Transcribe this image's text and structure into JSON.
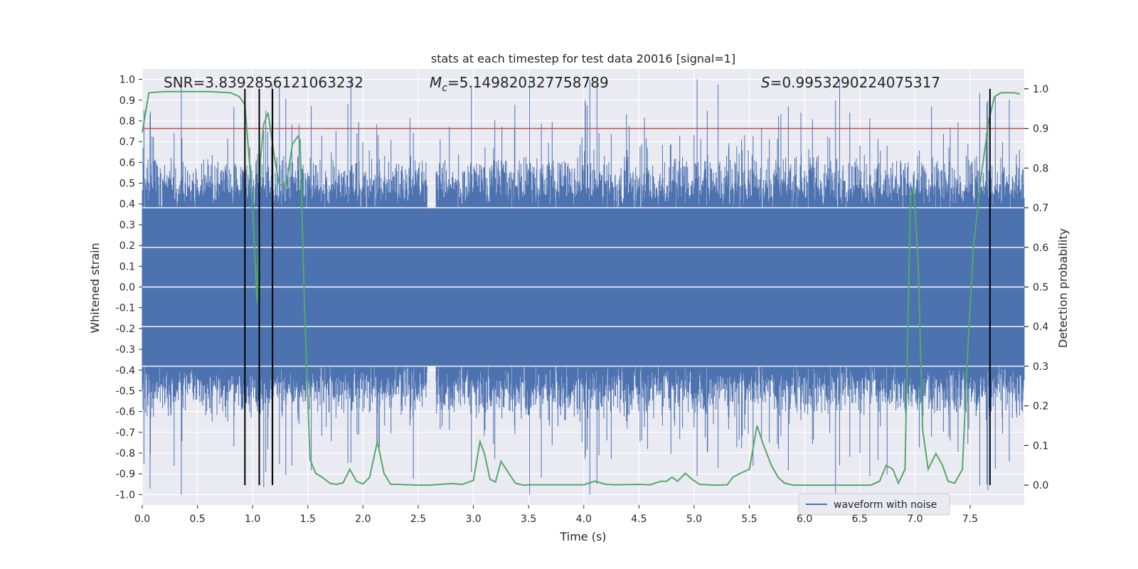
{
  "chart_data": {
    "type": "line",
    "title": "stats at each timestep for test data 20016 [signal=1]",
    "xlabel": "Time (s)",
    "ylabel": "Whitened strain",
    "y2label": "Detection probability",
    "xlim": [
      0.0,
      7.99
    ],
    "ylim": [
      -1.05,
      1.05
    ],
    "y2lim": [
      -0.05,
      1.05
    ],
    "x_ticks": [
      "0.0",
      "0.5",
      "1.0",
      "1.5",
      "2.0",
      "2.5",
      "3.0",
      "3.5",
      "4.0",
      "4.5",
      "5.0",
      "5.5",
      "6.0",
      "6.5",
      "7.0",
      "7.5"
    ],
    "y_ticks": [
      "1.0",
      "0.9",
      "0.8",
      "0.7",
      "0.6",
      "0.5",
      "0.4",
      "0.3",
      "0.2",
      "0.1",
      "0.0",
      "-0.1",
      "-0.2",
      "-0.3",
      "-0.4",
      "-0.5",
      "-0.6",
      "-0.7",
      "-0.8",
      "-0.9",
      "-1.0"
    ],
    "y2_ticks": [
      "1.0",
      "0.9",
      "0.8",
      "0.7",
      "0.6",
      "0.5",
      "0.4",
      "0.3",
      "0.2",
      "0.1",
      "0.0"
    ],
    "annotations": {
      "snr": "SNR=3.8392856121063232",
      "mc_symbol": "M",
      "mc_sub": "c",
      "mc_value": "=5.149820327758789",
      "s_symbol": "S",
      "s_value": "=0.9953290224075317"
    },
    "threshold": 0.9,
    "vertical_lines_x": [
      0.93,
      1.06,
      1.18,
      7.68
    ],
    "legend": {
      "position": "lower-right",
      "entries": [
        "waveform with noise"
      ]
    },
    "grid": true,
    "colors": {
      "waveform": "#4c72b0",
      "probability": "#55a868",
      "threshold": "#c44e52",
      "vlines": "#000000",
      "plot_bg": "#eaeaf2",
      "grid": "#ffffff"
    },
    "waveform_envelope": {
      "description_note": "",
      "x": [
        0.0,
        0.5,
        1.0,
        1.5,
        2.0,
        2.5,
        2.6,
        3.0,
        3.5,
        4.0,
        4.5,
        5.0,
        5.5,
        6.0,
        6.5,
        7.0,
        7.5,
        7.99
      ],
      "core_amplitude": 0.38
    },
    "series": [
      {
        "name": "detection probability",
        "axis": "right",
        "x": [
          0.0,
          0.06,
          0.2,
          0.4,
          0.6,
          0.8,
          0.88,
          0.93,
          0.97,
          1.0,
          1.04,
          1.07,
          1.1,
          1.14,
          1.19,
          1.24,
          1.3,
          1.36,
          1.41,
          1.43,
          1.47,
          1.52,
          1.57,
          1.63,
          1.7,
          1.76,
          1.82,
          1.88,
          1.94,
          2.0,
          2.06,
          2.13,
          2.19,
          2.25,
          2.31,
          2.5,
          2.6,
          2.8,
          2.9,
          3.0,
          3.06,
          3.1,
          3.15,
          3.2,
          3.25,
          3.38,
          3.45,
          3.52,
          3.6,
          3.8,
          4.0,
          4.1,
          4.2,
          4.3,
          4.5,
          4.6,
          4.7,
          4.75,
          4.8,
          4.85,
          4.92,
          4.98,
          5.05,
          5.2,
          5.3,
          5.35,
          5.42,
          5.5,
          5.57,
          5.63,
          5.7,
          5.76,
          5.82,
          5.9,
          6.0,
          6.5,
          6.6,
          6.68,
          6.74,
          6.8,
          6.85,
          6.91,
          6.96,
          6.99,
          7.03,
          7.07,
          7.12,
          7.19,
          7.25,
          7.3,
          7.36,
          7.43,
          7.48,
          7.53,
          7.6,
          7.67,
          7.72,
          7.78,
          7.85,
          7.9,
          7.95
        ],
        "values": [
          0.89,
          0.99,
          0.993,
          0.993,
          0.993,
          0.99,
          0.98,
          0.96,
          0.82,
          0.7,
          0.46,
          0.82,
          0.91,
          0.94,
          0.84,
          0.76,
          0.75,
          0.86,
          0.88,
          0.87,
          0.45,
          0.065,
          0.03,
          0.02,
          0.005,
          0.002,
          0.006,
          0.04,
          0.01,
          0.003,
          0.02,
          0.11,
          0.03,
          0.002,
          0.002,
          0.0,
          0.0,
          0.004,
          0.002,
          0.012,
          0.11,
          0.08,
          0.015,
          0.008,
          0.06,
          0.005,
          0.0,
          0.001,
          0.001,
          0.001,
          0.001,
          0.01,
          0.002,
          0.001,
          0.002,
          0.001,
          0.01,
          0.01,
          0.02,
          0.01,
          0.03,
          0.015,
          0.002,
          0.0,
          0.001,
          0.02,
          0.03,
          0.04,
          0.15,
          0.1,
          0.05,
          0.02,
          0.005,
          0.0,
          0.0,
          0.0,
          0.0,
          0.01,
          0.05,
          0.04,
          0.005,
          0.04,
          0.73,
          0.75,
          0.56,
          0.14,
          0.04,
          0.08,
          0.05,
          0.01,
          0.005,
          0.04,
          0.35,
          0.6,
          0.78,
          0.92,
          0.98,
          0.99,
          0.99,
          0.99,
          0.987
        ]
      }
    ]
  }
}
